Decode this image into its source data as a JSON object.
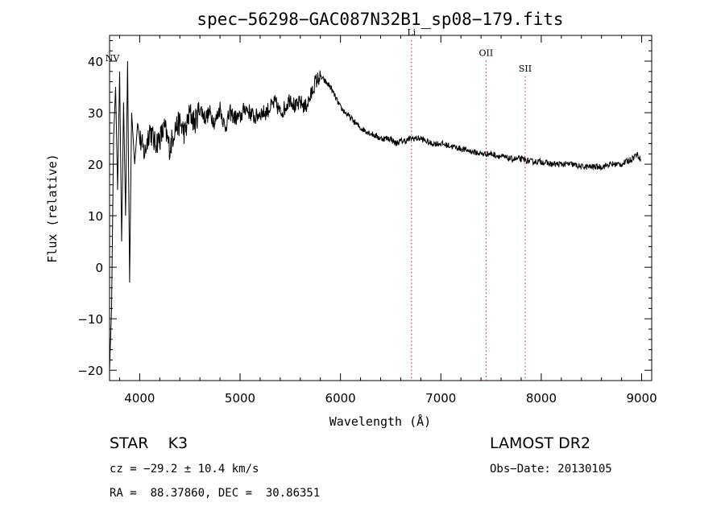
{
  "chart_data": {
    "type": "line",
    "title": "spec−56298−GAC087N32B1_sp08−179.fits",
    "xlabel": "Wavelength (Å)",
    "ylabel": "Flux (relative)",
    "xlim": [
      3700,
      9100
    ],
    "ylim": [
      -22,
      45
    ],
    "xticks": [
      4000,
      5000,
      6000,
      7000,
      8000,
      9000
    ],
    "yticks": [
      -20,
      -10,
      0,
      10,
      20,
      30,
      40
    ],
    "xtick_labels": [
      "4000",
      "5000",
      "6000",
      "7000",
      "8000",
      "9000"
    ],
    "ytick_labels": [
      "−20",
      "−10",
      "0",
      "10",
      "20",
      "30",
      "40"
    ],
    "grid": false,
    "series": [
      {
        "x": [
          3700,
          3720,
          3740,
          3760,
          3780,
          3800,
          3820,
          3840,
          3860,
          3880,
          3900,
          3920,
          3950,
          3980,
          4000,
          4050,
          4100,
          4150,
          4200,
          4250,
          4300,
          4350,
          4400,
          4450,
          4500,
          4550,
          4600,
          4650,
          4700,
          4750,
          4800,
          4850,
          4900,
          4950,
          5000,
          5050,
          5100,
          5150,
          5200,
          5250,
          5300,
          5350,
          5400,
          5450,
          5500,
          5550,
          5600,
          5650,
          5700,
          5750,
          5800,
          5850,
          5900,
          5950,
          6000,
          6100,
          6200,
          6300,
          6400,
          6500,
          6550,
          6600,
          6650,
          6700,
          6800,
          6900,
          7000,
          7100,
          7200,
          7300,
          7400,
          7500,
          7600,
          7700,
          7800,
          7900,
          8000,
          8100,
          8200,
          8300,
          8400,
          8500,
          8600,
          8700,
          8800,
          8900,
          8950,
          8990
        ],
        "y": [
          -20,
          -8,
          25,
          35,
          15,
          38,
          5,
          32,
          10,
          40,
          -3,
          30,
          20,
          28,
          25,
          22,
          27,
          24,
          25,
          27,
          23,
          27,
          28,
          26,
          30,
          28,
          31,
          29,
          30,
          28,
          31,
          27,
          30,
          29,
          29,
          31,
          30,
          29,
          30,
          30,
          31,
          32,
          30,
          31,
          33,
          31,
          32,
          31,
          33,
          36,
          37,
          36,
          35,
          33,
          31,
          29,
          27,
          26,
          25,
          25,
          24,
          24.5,
          24.5,
          25,
          25,
          24,
          24,
          23.5,
          23,
          22.5,
          22,
          22,
          21.5,
          21,
          21,
          20.5,
          20.5,
          20,
          20,
          20,
          19.5,
          19.5,
          19.5,
          20,
          20,
          21,
          22,
          21
        ]
      }
    ],
    "annotations": [
      {
        "label": "NV",
        "wavelength": 3728,
        "level": 40
      },
      {
        "label": "Li",
        "wavelength": 6708,
        "level": 45
      },
      {
        "label": "OII",
        "wavelength": 7450,
        "level": 41
      },
      {
        "label": "SII",
        "wavelength": 7840,
        "level": 38
      }
    ],
    "marker_color": "#d01818",
    "line_color": "#000000"
  },
  "info": {
    "class_label": "STAR",
    "subclass": "K3",
    "survey": "LAMOST DR2",
    "cz": "cz = −29.2 ± 10.4 km/s",
    "obs_date": "Obs−Date: 20130105",
    "radec": "RA =  88.37860, DEC =  30.86351"
  }
}
